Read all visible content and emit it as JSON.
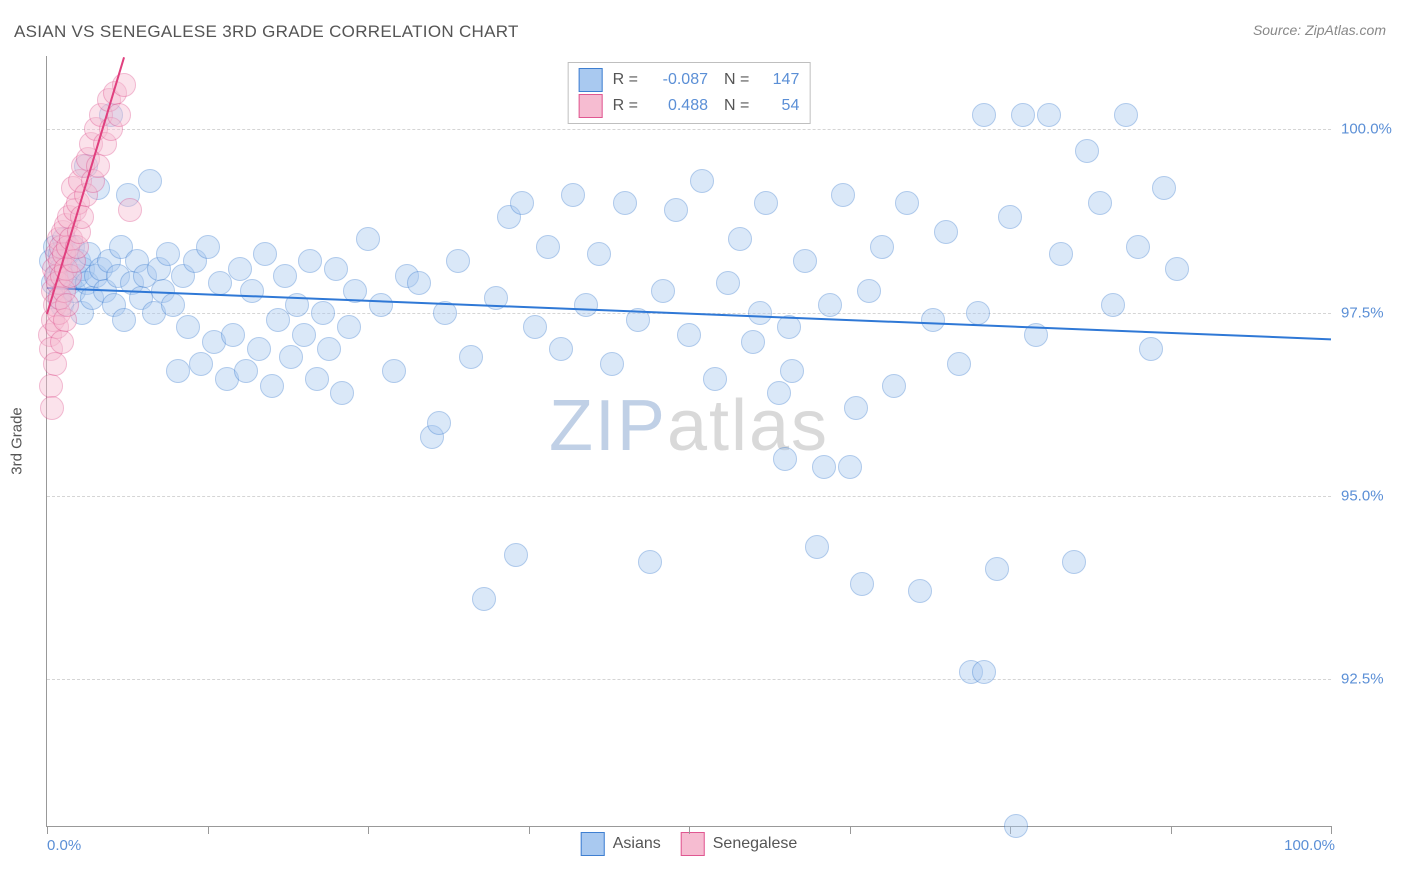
{
  "title": "ASIAN VS SENEGALESE 3RD GRADE CORRELATION CHART",
  "source": "Source: ZipAtlas.com",
  "yaxis_title": "3rd Grade",
  "watermark": {
    "part1": "ZIP",
    "part2": "atlas"
  },
  "chart": {
    "type": "scatter",
    "background_color": "#ffffff",
    "grid_color": "#d5d5d5",
    "axis_color": "#999999",
    "label_color": "#5b8fd6",
    "title_color": "#555555",
    "xlim": [
      0,
      100
    ],
    "ylim": [
      90.5,
      101
    ],
    "yticks": [
      92.5,
      95.0,
      97.5,
      100.0
    ],
    "ytick_labels": [
      "92.5%",
      "95.0%",
      "97.5%",
      "100.0%"
    ],
    "xticks": [
      0,
      12.5,
      25,
      37.5,
      50,
      62.5,
      75,
      87.5,
      100
    ],
    "xaxis_start_label": "0.0%",
    "xaxis_end_label": "100.0%",
    "marker_radius": 11,
    "marker_opacity": 0.42,
    "marker_border_opacity": 0.9,
    "title_fontsize": 17,
    "label_fontsize": 15,
    "legend_fontsize": 16
  },
  "series": [
    {
      "name": "Asians",
      "fill": "#a9c9f0",
      "stroke": "#3f7fd1",
      "trend": {
        "x1": 0,
        "y1": 97.85,
        "x2": 100,
        "y2": 97.15,
        "color": "#2f78d6",
        "width": 2
      },
      "stats": {
        "R": "-0.087",
        "N": "147"
      },
      "points": [
        [
          0.3,
          98.2
        ],
        [
          0.5,
          97.9
        ],
        [
          0.6,
          98.4
        ],
        [
          0.8,
          98.0
        ],
        [
          0.9,
          97.7
        ],
        [
          1.0,
          98.3
        ],
        [
          1.1,
          98.1
        ],
        [
          1.2,
          97.6
        ],
        [
          1.3,
          98.5
        ],
        [
          1.4,
          98.0
        ],
        [
          1.6,
          98.3
        ],
        [
          1.8,
          97.9
        ],
        [
          2.0,
          98.4
        ],
        [
          2.1,
          97.8
        ],
        [
          2.3,
          98.0
        ],
        [
          2.5,
          98.2
        ],
        [
          2.7,
          97.5
        ],
        [
          2.8,
          98.1
        ],
        [
          3.0,
          99.5
        ],
        [
          3.1,
          97.9
        ],
        [
          3.3,
          98.3
        ],
        [
          3.5,
          97.7
        ],
        [
          3.8,
          98.0
        ],
        [
          4.0,
          99.2
        ],
        [
          4.2,
          98.1
        ],
        [
          4.5,
          97.8
        ],
        [
          4.8,
          98.2
        ],
        [
          5.0,
          100.2
        ],
        [
          5.2,
          97.6
        ],
        [
          5.5,
          98.0
        ],
        [
          5.8,
          98.4
        ],
        [
          6.0,
          97.4
        ],
        [
          6.3,
          99.1
        ],
        [
          6.6,
          97.9
        ],
        [
          7.0,
          98.2
        ],
        [
          7.3,
          97.7
        ],
        [
          7.6,
          98.0
        ],
        [
          8.0,
          99.3
        ],
        [
          8.3,
          97.5
        ],
        [
          8.7,
          98.1
        ],
        [
          9.0,
          97.8
        ],
        [
          9.4,
          98.3
        ],
        [
          9.8,
          97.6
        ],
        [
          10.2,
          96.7
        ],
        [
          10.6,
          98.0
        ],
        [
          11.0,
          97.3
        ],
        [
          11.5,
          98.2
        ],
        [
          12.0,
          96.8
        ],
        [
          12.5,
          98.4
        ],
        [
          13.0,
          97.1
        ],
        [
          13.5,
          97.9
        ],
        [
          14.0,
          96.6
        ],
        [
          14.5,
          97.2
        ],
        [
          15.0,
          98.1
        ],
        [
          15.5,
          96.7
        ],
        [
          16.0,
          97.8
        ],
        [
          16.5,
          97.0
        ],
        [
          17.0,
          98.3
        ],
        [
          17.5,
          96.5
        ],
        [
          18.0,
          97.4
        ],
        [
          18.5,
          98.0
        ],
        [
          19.0,
          96.9
        ],
        [
          19.5,
          97.6
        ],
        [
          20.0,
          97.2
        ],
        [
          20.5,
          98.2
        ],
        [
          21.0,
          96.6
        ],
        [
          21.5,
          97.5
        ],
        [
          22.0,
          97.0
        ],
        [
          22.5,
          98.1
        ],
        [
          23.0,
          96.4
        ],
        [
          23.5,
          97.3
        ],
        [
          24.0,
          97.8
        ],
        [
          25.0,
          98.5
        ],
        [
          26.0,
          97.6
        ],
        [
          27.0,
          96.7
        ],
        [
          28.0,
          98.0
        ],
        [
          29.0,
          97.9
        ],
        [
          30.0,
          95.8
        ],
        [
          30.5,
          96.0
        ],
        [
          31.0,
          97.5
        ],
        [
          32.0,
          98.2
        ],
        [
          33.0,
          96.9
        ],
        [
          34.0,
          93.6
        ],
        [
          35.0,
          97.7
        ],
        [
          36.0,
          98.8
        ],
        [
          36.5,
          94.2
        ],
        [
          37.0,
          99.0
        ],
        [
          38.0,
          97.3
        ],
        [
          39.0,
          98.4
        ],
        [
          40.0,
          97.0
        ],
        [
          41.0,
          99.1
        ],
        [
          42.0,
          97.6
        ],
        [
          43.0,
          98.3
        ],
        [
          44.0,
          96.8
        ],
        [
          45.0,
          99.0
        ],
        [
          46.0,
          97.4
        ],
        [
          47.0,
          94.1
        ],
        [
          48.0,
          97.8
        ],
        [
          49.0,
          98.9
        ],
        [
          50.0,
          97.2
        ],
        [
          51.0,
          99.3
        ],
        [
          52.0,
          96.6
        ],
        [
          53.0,
          97.9
        ],
        [
          54.0,
          98.5
        ],
        [
          55.0,
          97.1
        ],
        [
          55.5,
          97.5
        ],
        [
          56.0,
          99.0
        ],
        [
          57.0,
          96.4
        ],
        [
          57.5,
          95.5
        ],
        [
          57.8,
          97.3
        ],
        [
          58.0,
          96.7
        ],
        [
          59.0,
          98.2
        ],
        [
          60.0,
          94.3
        ],
        [
          60.5,
          95.4
        ],
        [
          61.0,
          97.6
        ],
        [
          62.0,
          99.1
        ],
        [
          62.5,
          95.4
        ],
        [
          63.0,
          96.2
        ],
        [
          63.5,
          93.8
        ],
        [
          64.0,
          97.8
        ],
        [
          65.0,
          98.4
        ],
        [
          66.0,
          96.5
        ],
        [
          67.0,
          99.0
        ],
        [
          68.0,
          93.7
        ],
        [
          69.0,
          97.4
        ],
        [
          70.0,
          98.6
        ],
        [
          71.0,
          96.8
        ],
        [
          72.0,
          92.6
        ],
        [
          72.5,
          97.5
        ],
        [
          73.0,
          92.6
        ],
        [
          73.0,
          100.2
        ],
        [
          74.0,
          94.0
        ],
        [
          75.0,
          98.8
        ],
        [
          75.5,
          90.5
        ],
        [
          76.0,
          100.2
        ],
        [
          77.0,
          97.2
        ],
        [
          78.0,
          100.2
        ],
        [
          79.0,
          98.3
        ],
        [
          80.0,
          94.1
        ],
        [
          81.0,
          99.7
        ],
        [
          82.0,
          99.0
        ],
        [
          83.0,
          97.6
        ],
        [
          84.0,
          100.2
        ],
        [
          85.0,
          98.4
        ],
        [
          86.0,
          97.0
        ],
        [
          87.0,
          99.2
        ],
        [
          88.0,
          98.1
        ]
      ]
    },
    {
      "name": "Senegalese",
      "fill": "#f6bcd1",
      "stroke": "#e05791",
      "trend": {
        "x1": 0,
        "y1": 97.5,
        "x2": 6,
        "y2": 101.0,
        "color": "#e03f7e",
        "width": 2
      },
      "stats": {
        "R": "0.488",
        "N": "54"
      },
      "points": [
        [
          0.2,
          97.2
        ],
        [
          0.3,
          96.5
        ],
        [
          0.35,
          97.0
        ],
        [
          0.4,
          96.2
        ],
        [
          0.45,
          97.4
        ],
        [
          0.5,
          97.8
        ],
        [
          0.55,
          98.1
        ],
        [
          0.6,
          97.6
        ],
        [
          0.65,
          96.8
        ],
        [
          0.7,
          98.0
        ],
        [
          0.75,
          97.3
        ],
        [
          0.8,
          98.3
        ],
        [
          0.85,
          97.9
        ],
        [
          0.9,
          98.5
        ],
        [
          0.95,
          97.5
        ],
        [
          1.0,
          98.2
        ],
        [
          1.05,
          97.7
        ],
        [
          1.1,
          98.4
        ],
        [
          1.15,
          97.1
        ],
        [
          1.2,
          98.0
        ],
        [
          1.25,
          98.6
        ],
        [
          1.3,
          97.8
        ],
        [
          1.35,
          98.3
        ],
        [
          1.4,
          97.4
        ],
        [
          1.45,
          98.7
        ],
        [
          1.5,
          98.1
        ],
        [
          1.55,
          97.6
        ],
        [
          1.6,
          98.4
        ],
        [
          1.7,
          98.8
        ],
        [
          1.8,
          98.0
        ],
        [
          1.9,
          98.5
        ],
        [
          2.0,
          99.2
        ],
        [
          2.1,
          98.2
        ],
        [
          2.2,
          98.9
        ],
        [
          2.3,
          98.4
        ],
        [
          2.4,
          99.0
        ],
        [
          2.5,
          98.6
        ],
        [
          2.6,
          99.3
        ],
        [
          2.7,
          98.8
        ],
        [
          2.8,
          99.5
        ],
        [
          3.0,
          99.1
        ],
        [
          3.2,
          99.6
        ],
        [
          3.4,
          99.8
        ],
        [
          3.6,
          99.3
        ],
        [
          3.8,
          100.0
        ],
        [
          4.0,
          99.5
        ],
        [
          4.2,
          100.2
        ],
        [
          4.5,
          99.8
        ],
        [
          4.8,
          100.4
        ],
        [
          5.0,
          100.0
        ],
        [
          5.3,
          100.5
        ],
        [
          5.6,
          100.2
        ],
        [
          6.0,
          100.6
        ],
        [
          6.5,
          98.9
        ]
      ]
    }
  ],
  "legend_bottom": [
    {
      "label": "Asians",
      "fill": "#a9c9f0",
      "stroke": "#3f7fd1"
    },
    {
      "label": "Senegalese",
      "fill": "#f6bcd1",
      "stroke": "#e05791"
    }
  ]
}
